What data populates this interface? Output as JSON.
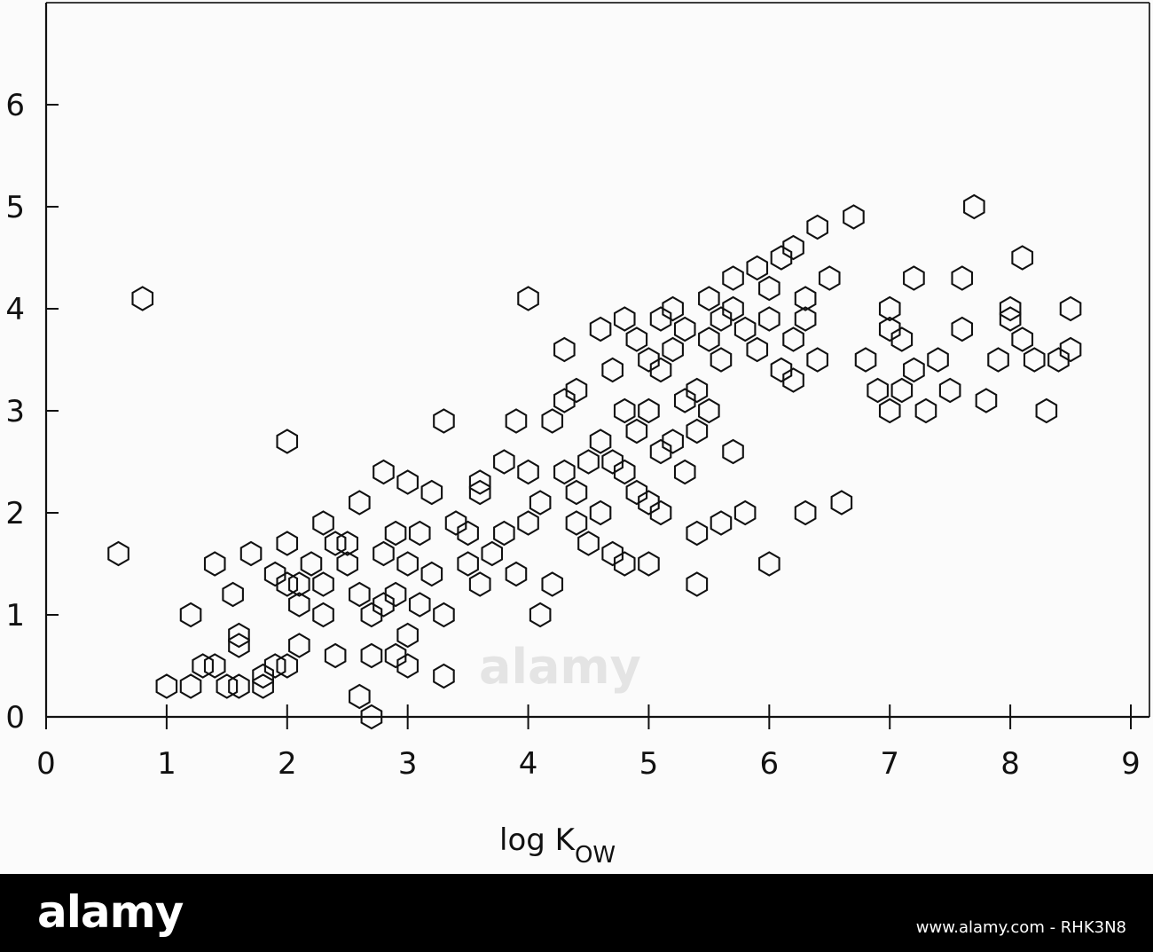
{
  "chart_data": {
    "type": "scatter",
    "xlabel_main": "log K",
    "xlabel_sub": "OW",
    "xlim": [
      0,
      9
    ],
    "ylim": [
      0,
      7
    ],
    "x_ticks": [
      "0",
      "1",
      "2",
      "3",
      "4",
      "5",
      "6",
      "7",
      "8",
      "9"
    ],
    "y_ticks": [
      "0",
      "1",
      "2",
      "3",
      "4",
      "5",
      "6"
    ],
    "marker": "hexagon",
    "points": [
      [
        0.8,
        4.1
      ],
      [
        0.6,
        1.6
      ],
      [
        1.0,
        0.3
      ],
      [
        1.2,
        0.3
      ],
      [
        1.2,
        1.0
      ],
      [
        1.3,
        0.5
      ],
      [
        1.4,
        0.5
      ],
      [
        1.5,
        0.3
      ],
      [
        1.4,
        1.5
      ],
      [
        1.6,
        0.3
      ],
      [
        1.55,
        1.2
      ],
      [
        1.6,
        0.8
      ],
      [
        1.6,
        0.7
      ],
      [
        1.7,
        1.6
      ],
      [
        1.8,
        0.3
      ],
      [
        1.8,
        0.4
      ],
      [
        1.9,
        1.4
      ],
      [
        1.9,
        0.5
      ],
      [
        2.0,
        1.7
      ],
      [
        2.0,
        1.3
      ],
      [
        2.0,
        0.5
      ],
      [
        2.0,
        2.7
      ],
      [
        2.1,
        1.3
      ],
      [
        2.1,
        1.1
      ],
      [
        2.1,
        0.7
      ],
      [
        2.2,
        1.5
      ],
      [
        2.3,
        1.3
      ],
      [
        2.3,
        1.0
      ],
      [
        2.4,
        0.6
      ],
      [
        2.4,
        1.7
      ],
      [
        2.5,
        1.5
      ],
      [
        2.6,
        2.1
      ],
      [
        2.6,
        1.2
      ],
      [
        2.6,
        0.2
      ],
      [
        2.7,
        1.0
      ],
      [
        2.7,
        0.6
      ],
      [
        2.7,
        0.0
      ],
      [
        2.8,
        2.4
      ],
      [
        2.8,
        1.6
      ],
      [
        2.8,
        1.1
      ],
      [
        2.9,
        0.6
      ],
      [
        2.9,
        1.2
      ],
      [
        2.9,
        1.8
      ],
      [
        3.0,
        2.3
      ],
      [
        3.0,
        1.5
      ],
      [
        3.0,
        0.8
      ],
      [
        3.0,
        0.5
      ],
      [
        3.1,
        1.1
      ],
      [
        3.1,
        1.8
      ],
      [
        3.2,
        2.2
      ],
      [
        3.2,
        1.4
      ],
      [
        3.3,
        2.9
      ],
      [
        3.3,
        1.0
      ],
      [
        3.3,
        0.4
      ],
      [
        3.4,
        1.9
      ],
      [
        3.5,
        1.5
      ],
      [
        3.5,
        1.8
      ],
      [
        3.6,
        1.3
      ],
      [
        3.6,
        2.2
      ],
      [
        3.7,
        1.6
      ],
      [
        3.8,
        2.5
      ],
      [
        3.8,
        1.8
      ],
      [
        3.9,
        2.9
      ],
      [
        3.9,
        1.4
      ],
      [
        4.0,
        4.1
      ],
      [
        4.0,
        2.4
      ],
      [
        4.0,
        1.9
      ],
      [
        4.1,
        2.1
      ],
      [
        4.1,
        1.0
      ],
      [
        4.2,
        2.9
      ],
      [
        4.2,
        1.3
      ],
      [
        4.3,
        3.6
      ],
      [
        4.3,
        3.1
      ],
      [
        4.3,
        2.4
      ],
      [
        4.4,
        3.2
      ],
      [
        4.4,
        2.2
      ],
      [
        4.5,
        2.5
      ],
      [
        4.5,
        1.7
      ],
      [
        4.6,
        3.8
      ],
      [
        4.6,
        2.7
      ],
      [
        4.6,
        2.0
      ],
      [
        4.7,
        3.4
      ],
      [
        4.7,
        2.5
      ],
      [
        4.7,
        1.6
      ],
      [
        4.8,
        3.9
      ],
      [
        4.8,
        3.0
      ],
      [
        4.8,
        2.4
      ],
      [
        4.8,
        1.5
      ],
      [
        4.9,
        3.7
      ],
      [
        4.9,
        2.8
      ],
      [
        4.9,
        2.2
      ],
      [
        5.0,
        3.5
      ],
      [
        5.0,
        3.0
      ],
      [
        5.0,
        2.1
      ],
      [
        5.0,
        1.5
      ],
      [
        5.1,
        3.9
      ],
      [
        5.1,
        3.4
      ],
      [
        5.1,
        2.6
      ],
      [
        5.1,
        2.0
      ],
      [
        5.2,
        4.0
      ],
      [
        5.2,
        3.6
      ],
      [
        5.2,
        2.7
      ],
      [
        5.3,
        3.8
      ],
      [
        5.3,
        3.1
      ],
      [
        5.3,
        2.4
      ],
      [
        5.4,
        3.2
      ],
      [
        5.4,
        2.8
      ],
      [
        5.4,
        1.3
      ],
      [
        5.5,
        4.1
      ],
      [
        5.5,
        3.7
      ],
      [
        5.5,
        3.0
      ],
      [
        5.6,
        3.5
      ],
      [
        5.6,
        3.9
      ],
      [
        5.7,
        4.3
      ],
      [
        5.7,
        4.0
      ],
      [
        5.7,
        2.6
      ],
      [
        5.8,
        3.8
      ],
      [
        5.8,
        2.0
      ],
      [
        5.9,
        4.4
      ],
      [
        5.9,
        3.6
      ],
      [
        6.0,
        4.2
      ],
      [
        6.0,
        3.9
      ],
      [
        6.0,
        1.5
      ],
      [
        6.1,
        4.5
      ],
      [
        6.1,
        3.4
      ],
      [
        6.2,
        4.6
      ],
      [
        6.2,
        3.7
      ],
      [
        6.3,
        4.1
      ],
      [
        6.3,
        2.0
      ],
      [
        6.3,
        3.9
      ],
      [
        6.4,
        4.8
      ],
      [
        6.4,
        3.5
      ],
      [
        6.5,
        4.3
      ],
      [
        6.6,
        2.1
      ],
      [
        6.7,
        4.9
      ],
      [
        6.8,
        3.5
      ],
      [
        6.9,
        3.2
      ],
      [
        7.0,
        4.0
      ],
      [
        7.0,
        3.8
      ],
      [
        7.1,
        3.7
      ],
      [
        7.2,
        4.3
      ],
      [
        7.2,
        3.4
      ],
      [
        7.3,
        3.0
      ],
      [
        7.4,
        3.5
      ],
      [
        7.5,
        3.2
      ],
      [
        7.6,
        4.3
      ],
      [
        7.6,
        3.8
      ],
      [
        7.7,
        5.0
      ],
      [
        7.8,
        3.1
      ],
      [
        7.9,
        3.5
      ],
      [
        8.0,
        4.0
      ],
      [
        8.0,
        3.9
      ],
      [
        8.1,
        3.7
      ],
      [
        8.1,
        4.5
      ],
      [
        8.2,
        3.5
      ],
      [
        8.3,
        3.0
      ],
      [
        8.4,
        3.5
      ],
      [
        8.5,
        4.0
      ],
      [
        8.5,
        3.6
      ],
      [
        2.3,
        1.9
      ],
      [
        2.5,
        1.7
      ],
      [
        3.6,
        2.3
      ],
      [
        4.4,
        1.9
      ],
      [
        5.4,
        1.8
      ],
      [
        5.6,
        1.9
      ],
      [
        6.2,
        3.3
      ],
      [
        7.0,
        3.0
      ],
      [
        7.1,
        3.2
      ]
    ]
  },
  "footer": {
    "brand": "alamy",
    "watermark": "alamy",
    "code": "www.alamy.com - RHK3N8"
  }
}
